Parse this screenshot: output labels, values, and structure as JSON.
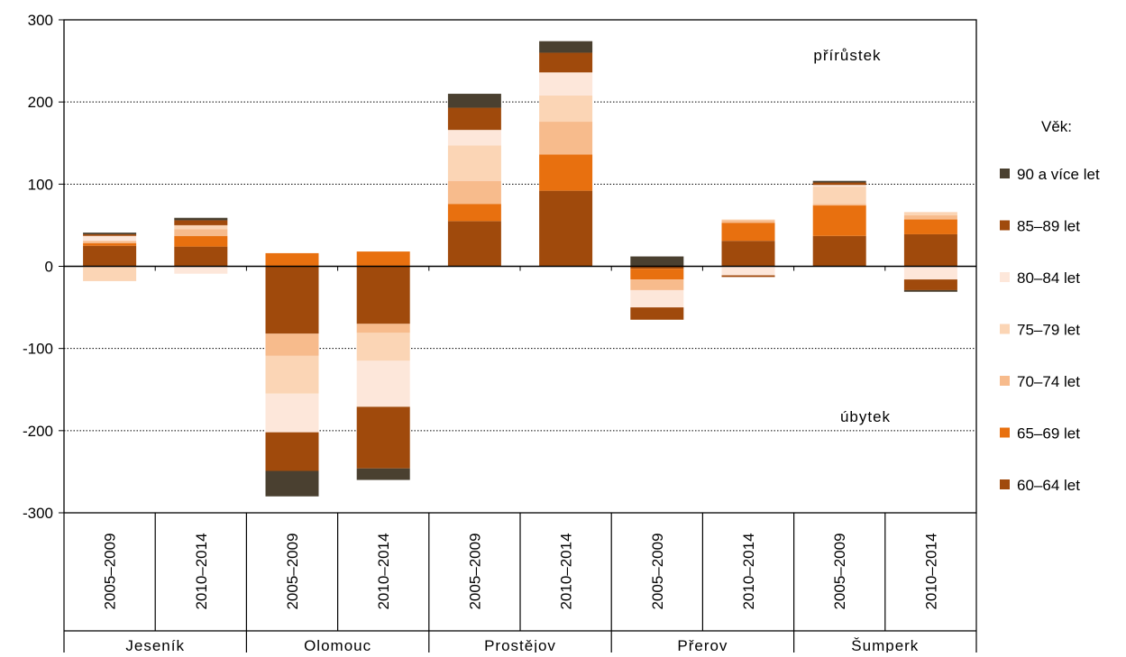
{
  "chart_data": {
    "type": "bar",
    "stacked": true,
    "regions": [
      "Jeseník",
      "Olomouc",
      "Prostějov",
      "Přerov",
      "Šumperk"
    ],
    "periods": [
      "2005–2009",
      "2010–2014"
    ],
    "ylim": [
      -300,
      300
    ],
    "yticks": [
      300,
      200,
      100,
      0,
      -100,
      -200,
      -300
    ],
    "grid": true,
    "annotations": {
      "increase": "přírůstek",
      "decrease": "úbytek"
    },
    "legend": {
      "title": "Věk:",
      "position": "right"
    },
    "series": [
      {
        "name": "60–64 let",
        "color": "#a04a0c",
        "values": [
          25,
          24,
          -82,
          -70,
          55,
          92,
          -3,
          31,
          37,
          39
        ]
      },
      {
        "name": "65–69 let",
        "color": "#e8700f",
        "values": [
          3,
          13,
          16,
          18,
          21,
          44,
          -13,
          22,
          37,
          18
        ]
      },
      {
        "name": "70–74 let",
        "color": "#f7bb8c",
        "values": [
          3,
          8,
          -27,
          -11,
          28,
          40,
          -13,
          3,
          2,
          5
        ]
      },
      {
        "name": "75–79 let",
        "color": "#fbd5b5",
        "values": [
          -18,
          5,
          -46,
          -34,
          43,
          32,
          0,
          1,
          21,
          4
        ]
      },
      {
        "name": "80–84 let",
        "color": "#fde7da",
        "values": [
          6,
          -9,
          -47,
          -56,
          19,
          28,
          -21,
          -11,
          2,
          -16
        ]
      },
      {
        "name": "85–89 let",
        "color": "#a04a0c",
        "values": [
          2,
          6,
          -47,
          -75,
          27,
          24,
          -15,
          -2,
          3,
          -13
        ]
      },
      {
        "name": "90 a více let",
        "color": "#4a4030",
        "values": [
          2,
          3,
          -31,
          -14,
          17,
          14,
          12,
          0,
          2,
          -2
        ]
      }
    ]
  }
}
